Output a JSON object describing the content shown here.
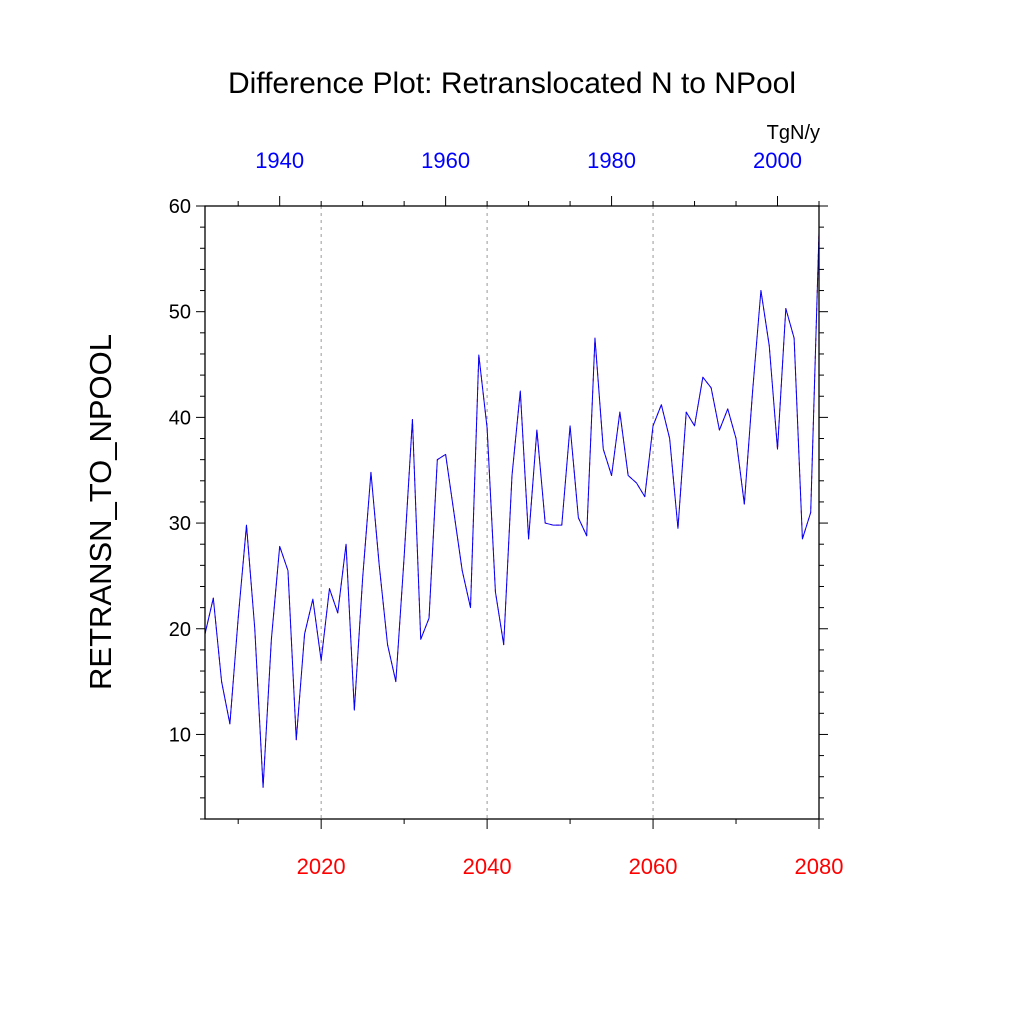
{
  "chart_data": {
    "type": "line",
    "title": "Difference Plot: Retranslocated N to NPool",
    "units": "TgN/y",
    "ylabel": "RETRANSN_TO_NPOOL",
    "ylim": [
      2,
      60
    ],
    "yticks": [
      10,
      20,
      30,
      40,
      50,
      60
    ],
    "grid": "vertical dashed at major bottom ticks",
    "bottom_axis": {
      "color": "#ff0000",
      "range": [
        2006,
        2080
      ],
      "ticks": [
        2020,
        2040,
        2060,
        2080
      ],
      "minor_ticks": [
        2010,
        2030,
        2050,
        2070
      ]
    },
    "top_axis": {
      "color": "#0000ff",
      "range": [
        1931,
        2005
      ],
      "ticks": [
        1940,
        1960,
        1980,
        2000
      ],
      "minor_ticks": [
        1935,
        1945,
        1950,
        1955,
        1965,
        1970,
        1975,
        1985,
        1990,
        1995,
        2005
      ]
    },
    "series": [
      {
        "color": "#ff0000",
        "style": "dashed",
        "x": [
          2006,
          2007,
          2008,
          2009,
          2010,
          2011,
          2012,
          2013,
          2014,
          2015,
          2016,
          2017,
          2018,
          2019,
          2020,
          2021,
          2022,
          2023,
          2024,
          2025,
          2026,
          2027,
          2028,
          2029,
          2030,
          2031,
          2032,
          2033,
          2034,
          2035,
          2036,
          2037,
          2038,
          2039,
          2040,
          2041,
          2042,
          2043,
          2044,
          2045,
          2046,
          2047,
          2048,
          2049,
          2050,
          2051,
          2052,
          2053,
          2054,
          2055,
          2056,
          2057,
          2058,
          2059,
          2060,
          2061,
          2062,
          2063,
          2064,
          2065,
          2066,
          2067,
          2068,
          2069,
          2070,
          2071,
          2072,
          2073,
          2074,
          2075,
          2076,
          2077,
          2078,
          2079,
          2080
        ],
        "values": [
          19.5,
          22.9,
          15.0,
          11.0,
          21.0,
          29.8,
          20.0,
          5.0,
          19.0,
          27.8,
          25.5,
          9.5,
          19.5,
          22.8,
          17.0,
          23.8,
          21.5,
          28.0,
          12.3,
          24.8,
          34.8,
          26.0,
          18.5,
          15.0,
          26.8,
          39.8,
          19.0,
          21.0,
          36.0,
          36.5,
          31.0,
          25.5,
          22.0,
          45.9,
          39.0,
          23.5,
          18.5,
          34.5,
          42.5,
          28.5,
          38.8,
          30.0,
          29.8,
          29.8,
          39.2,
          30.5,
          28.8,
          47.5,
          37.0,
          34.5,
          40.5,
          34.5,
          33.8,
          32.5,
          39.2,
          41.2,
          38.0,
          29.5,
          40.5,
          39.2,
          43.8,
          42.8,
          38.8,
          40.8,
          38.0,
          31.8,
          42.5,
          52.0,
          46.8,
          37.0,
          50.3,
          47.5,
          28.5,
          31.0,
          57.5
        ]
      },
      {
        "color": "#0000ff",
        "style": "solid",
        "x": [
          2006,
          2007,
          2008,
          2009,
          2010,
          2011,
          2012,
          2013,
          2014,
          2015,
          2016,
          2017,
          2018,
          2019,
          2020,
          2021,
          2022,
          2023,
          2024,
          2025,
          2026,
          2027,
          2028,
          2029,
          2030,
          2031,
          2032,
          2033,
          2034,
          2035,
          2036,
          2037,
          2038,
          2039,
          2040,
          2041,
          2042,
          2043,
          2044,
          2045,
          2046,
          2047,
          2048,
          2049,
          2050,
          2051,
          2052,
          2053,
          2054,
          2055,
          2056,
          2057,
          2058,
          2059,
          2060,
          2061,
          2062,
          2063,
          2064,
          2065,
          2066,
          2067,
          2068,
          2069,
          2070,
          2071,
          2072,
          2073,
          2074,
          2075,
          2076,
          2077,
          2078,
          2079,
          2080
        ],
        "values": [
          19.5,
          22.9,
          15.0,
          11.0,
          21.0,
          29.8,
          20.0,
          5.0,
          19.0,
          27.8,
          25.5,
          9.5,
          19.5,
          22.8,
          17.0,
          23.8,
          21.5,
          28.0,
          12.3,
          24.8,
          34.8,
          26.0,
          18.5,
          15.0,
          26.8,
          39.8,
          19.0,
          21.0,
          36.0,
          36.5,
          31.0,
          25.5,
          22.0,
          45.9,
          39.0,
          23.5,
          18.5,
          34.5,
          42.5,
          28.5,
          38.8,
          30.0,
          29.8,
          29.8,
          39.2,
          30.5,
          28.8,
          47.5,
          37.0,
          34.5,
          40.5,
          34.5,
          33.8,
          32.5,
          39.2,
          41.2,
          38.0,
          29.5,
          40.5,
          39.2,
          43.8,
          42.8,
          38.8,
          40.8,
          38.0,
          31.8,
          42.5,
          52.0,
          46.8,
          37.0,
          50.3,
          47.5,
          28.5,
          31.0,
          57.5
        ]
      }
    ]
  }
}
